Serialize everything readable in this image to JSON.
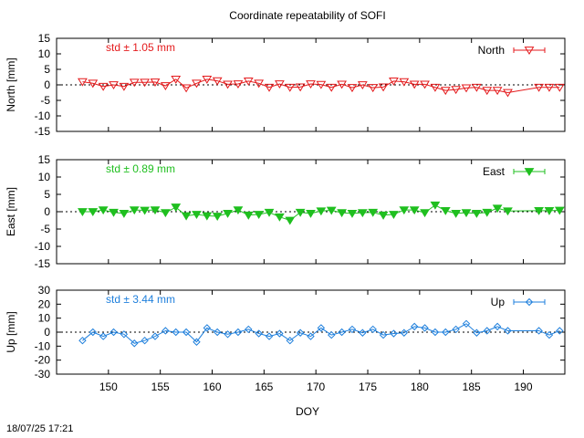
{
  "title": "Coordinate repeatability of SOFI",
  "footer_timestamp": "18/07/25 17:21",
  "chart_data": [
    {
      "type": "scatter",
      "ylabel": "North [mm]",
      "ylim": [
        -15,
        15
      ],
      "yticks": [
        15,
        10,
        5,
        0,
        -5,
        -10,
        -15
      ],
      "std_label": "std ± 1.05 mm",
      "legend_label": "North",
      "legend_position": "top-right",
      "color": "#e41a1c",
      "marker": "triangle-down-open",
      "x": [
        147.5,
        148.5,
        149.5,
        150.5,
        151.5,
        152.5,
        153.5,
        154.5,
        155.5,
        156.5,
        157.5,
        158.5,
        159.5,
        160.5,
        161.5,
        162.5,
        163.5,
        164.5,
        165.5,
        166.5,
        167.5,
        168.5,
        169.5,
        170.5,
        171.5,
        172.5,
        173.5,
        174.5,
        175.5,
        176.5,
        177.5,
        178.5,
        179.5,
        180.5,
        181.5,
        182.5,
        183.5,
        184.5,
        185.5,
        186.5,
        187.5,
        188.5,
        191.5,
        192.5,
        193.5
      ],
      "y": [
        1.0,
        0.5,
        -0.5,
        0,
        -0.5,
        0.8,
        0.8,
        0.9,
        -0.3,
        1.8,
        -1.0,
        0.5,
        1.8,
        1.3,
        0.2,
        0.3,
        1.2,
        0.5,
        -0.8,
        0.3,
        -0.8,
        -0.7,
        0.3,
        0.1,
        -0.8,
        0.2,
        -0.9,
        0,
        -0.9,
        -0.7,
        1.2,
        1.0,
        0.2,
        0.2,
        -0.8,
        -1.8,
        -1.5,
        -1.0,
        -0.8,
        -1.8,
        -1.8,
        -2.5,
        -0.8,
        -0.8,
        -0.8
      ]
    },
    {
      "type": "scatter",
      "ylabel": "East [mm]",
      "ylim": [
        -15,
        15
      ],
      "yticks": [
        15,
        10,
        5,
        0,
        -5,
        -10,
        -15
      ],
      "std_label": "std ± 0.89 mm",
      "legend_label": "East",
      "legend_position": "top-right",
      "color": "#1fbf1f",
      "marker": "triangle-down-filled",
      "x": [
        147.5,
        148.5,
        149.5,
        150.5,
        151.5,
        152.5,
        153.5,
        154.5,
        155.5,
        156.5,
        157.5,
        158.5,
        159.5,
        160.5,
        161.5,
        162.5,
        163.5,
        164.5,
        165.5,
        166.5,
        167.5,
        168.5,
        169.5,
        170.5,
        171.5,
        172.5,
        173.5,
        174.5,
        175.5,
        176.5,
        177.5,
        178.5,
        179.5,
        180.5,
        181.5,
        182.5,
        183.5,
        184.5,
        185.5,
        186.5,
        187.5,
        188.5,
        191.5,
        192.5,
        193.5
      ],
      "y": [
        0,
        0,
        0.5,
        -0.2,
        -0.5,
        0.5,
        0.4,
        0.5,
        -0.3,
        1.3,
        -1.2,
        -0.8,
        -1.2,
        -1.3,
        -0.5,
        0.5,
        -1.0,
        -0.8,
        -0.2,
        -1.5,
        -2.5,
        -0.2,
        -0.5,
        0.2,
        0.4,
        -0.3,
        -0.5,
        -0.3,
        -0.2,
        -1.0,
        -0.8,
        0.5,
        0.5,
        -0.3,
        1.9,
        0.3,
        -0.5,
        -0.3,
        -0.5,
        -0.2,
        1.0,
        0.2,
        0.3,
        0.3,
        0.4
      ]
    },
    {
      "type": "line",
      "ylabel": "Up [mm]",
      "ylim": [
        -30,
        30
      ],
      "yticks": [
        30,
        20,
        10,
        0,
        -10,
        -20,
        -30
      ],
      "std_label": "std ± 3.44 mm",
      "legend_label": "Up",
      "legend_position": "top-right",
      "color": "#1e7fdc",
      "marker": "diamond-open",
      "x": [
        147.5,
        148.5,
        149.5,
        150.5,
        151.5,
        152.5,
        153.5,
        154.5,
        155.5,
        156.5,
        157.5,
        158.5,
        159.5,
        160.5,
        161.5,
        162.5,
        163.5,
        164.5,
        165.5,
        166.5,
        167.5,
        168.5,
        169.5,
        170.5,
        171.5,
        172.5,
        173.5,
        174.5,
        175.5,
        176.5,
        177.5,
        178.5,
        179.5,
        180.5,
        181.5,
        182.5,
        183.5,
        184.5,
        185.5,
        186.5,
        187.5,
        188.5,
        191.5,
        192.5,
        193.5
      ],
      "y": [
        -6,
        0,
        -3,
        0,
        -1.5,
        -8,
        -6,
        -3,
        1,
        0,
        0,
        -7,
        3,
        0,
        -1.5,
        0,
        2,
        -1,
        -3,
        -1,
        -6,
        -0.5,
        -3,
        3,
        -2,
        0,
        2,
        -0.5,
        2,
        -2,
        -1,
        -0.5,
        4,
        3,
        0,
        0,
        2,
        6,
        -0.5,
        1,
        4,
        1,
        1,
        -2,
        1
      ]
    }
  ],
  "x_axis": {
    "label": "DOY",
    "range": [
      145,
      194
    ],
    "ticks": [
      150,
      155,
      160,
      165,
      170,
      175,
      180,
      185,
      190
    ]
  }
}
